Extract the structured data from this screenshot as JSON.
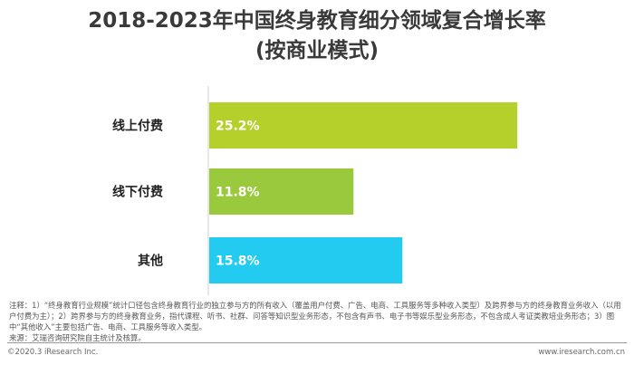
{
  "title_line1": "2018-2023年中国终身教育细分领域复合增长率",
  "title_line2": "(按商业模式)",
  "chart_data": {
    "type": "bar",
    "orientation": "horizontal",
    "categories": [
      "线上付费",
      "线下付费",
      "其他"
    ],
    "values": [
      25.2,
      11.8,
      15.8
    ],
    "value_labels": [
      "25.2%",
      "11.8%",
      "15.8%"
    ],
    "unit": "%",
    "xlim": [
      0,
      30
    ],
    "colors": [
      "#b5cf2b",
      "#9bc93d",
      "#23cbf0"
    ],
    "grid": false,
    "legend": "none"
  },
  "notes": {
    "line1": "注释：1）“终身教育行业规模”统计口径包含终身教育行业的独立参与方的所有收入（覆盖用户付费、广告、电商、工具服务等多种收入类型）及跨界参与方的终身教育业务收入（以用户付费为主）；2）跨界参与方的终身教育业务，指代课程、听书、社群、问答等知识型业务形态，不包含有声书、电子书等娱乐型业务形态，不包含成人考证类教培业务形态；3）图中“其他收入”主要包括广告、电商、工具服务等收入类型。",
    "line2": "来源：艾瑞咨询研究院自主统计及核算。"
  },
  "footer": {
    "left": "©2020.3 iResearch Inc.",
    "right": "www.iresearch.com.cn"
  }
}
